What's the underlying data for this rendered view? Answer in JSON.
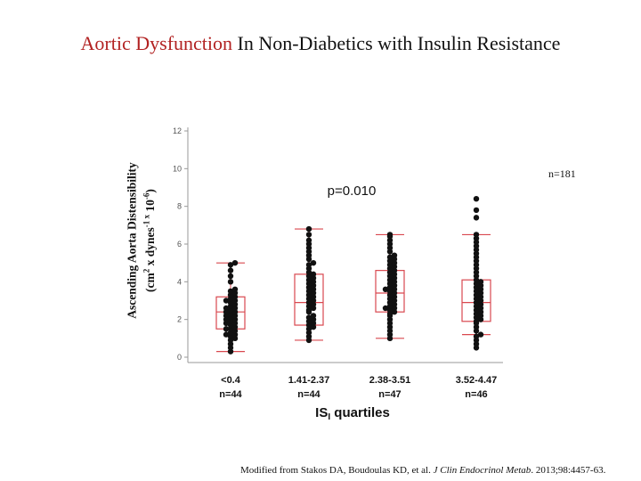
{
  "slide": {
    "title_accent": "Aortic Dysfunction",
    "title_rest": " In Non-Diabetics with Insulin Resistance",
    "ylabel_line1": "Ascending Aorta Distensibility",
    "ylabel_line2_a": "(cm",
    "ylabel_line2_sup1": "2",
    "ylabel_line2_b": " x dynes",
    "ylabel_line2_sup2": "-1 x",
    "ylabel_line2_c": " 10",
    "ylabel_line2_sup3": "-6",
    "ylabel_line2_d": ")",
    "n_total": "n=181",
    "citation_a": "Modified from Stakos DA, Boudoulas KD, et al. ",
    "citation_journal": "J Clin Endocrinol Metab",
    "citation_b": ". 2013;98:4457-63."
  },
  "colors": {
    "title_accent": "#b22222",
    "box": "#d9484f",
    "point": "#111111",
    "axis": "#999999"
  },
  "chart_data": {
    "type": "box",
    "title": "",
    "xlabel": "ISI quartiles",
    "xlabel_main": "IS",
    "xlabel_sub": "I",
    "xlabel_rest": " quartiles",
    "ylim": [
      0,
      12
    ],
    "yticks": [
      0,
      2,
      4,
      6,
      8,
      10,
      12
    ],
    "annotation": "p=0.010",
    "categories": [
      {
        "range": "<0.4",
        "n": "n=44"
      },
      {
        "range": "1.41-2.37",
        "n": "n=44"
      },
      {
        "range": "2.38-3.51",
        "n": "n=47"
      },
      {
        "range": "3.52-4.47",
        "n": "n=46"
      }
    ],
    "boxes": [
      {
        "whisker_low": 0.3,
        "q1": 1.5,
        "median": 2.4,
        "q3": 3.2,
        "whisker_high": 5.0
      },
      {
        "whisker_low": 0.9,
        "q1": 1.7,
        "median": 2.9,
        "q3": 4.4,
        "whisker_high": 6.8
      },
      {
        "whisker_low": 1.0,
        "q1": 2.4,
        "median": 3.4,
        "q3": 4.6,
        "whisker_high": 6.5
      },
      {
        "whisker_low": 1.2,
        "q1": 1.9,
        "median": 2.9,
        "q3": 4.1,
        "whisker_high": 6.5
      }
    ],
    "points": [
      [
        0.3,
        0.5,
        0.7,
        0.9,
        1.0,
        1.1,
        1.2,
        1.3,
        1.4,
        1.5,
        1.6,
        1.7,
        1.8,
        1.9,
        2.0,
        2.1,
        2.2,
        2.3,
        2.4,
        2.5,
        2.6,
        2.7,
        2.8,
        2.9,
        3.0,
        3.1,
        3.2,
        3.3,
        3.4,
        3.5,
        1.2,
        1.8,
        2.2,
        2.6,
        3.0,
        1.5,
        2.0,
        2.4,
        3.6,
        4.0,
        4.3,
        4.6,
        4.9,
        5.0
      ],
      [
        0.9,
        1.1,
        1.3,
        1.5,
        1.6,
        1.7,
        1.8,
        1.9,
        2.0,
        2.1,
        2.2,
        2.4,
        2.5,
        2.6,
        2.7,
        2.8,
        2.9,
        3.0,
        3.1,
        3.2,
        3.3,
        3.4,
        3.5,
        3.6,
        3.7,
        3.8,
        3.9,
        4.0,
        4.1,
        4.2,
        4.3,
        4.4,
        4.5,
        4.7,
        4.9,
        5.0,
        5.2,
        5.4,
        5.6,
        5.8,
        6.0,
        6.2,
        6.5,
        6.8
      ],
      [
        1.0,
        1.2,
        1.4,
        1.6,
        1.8,
        2.0,
        2.2,
        2.3,
        2.4,
        2.5,
        2.6,
        2.7,
        2.8,
        2.9,
        3.0,
        3.1,
        3.2,
        3.3,
        3.4,
        3.5,
        3.6,
        3.7,
        3.8,
        3.9,
        4.0,
        4.1,
        4.2,
        4.3,
        4.4,
        4.5,
        4.6,
        4.7,
        4.8,
        4.9,
        5.0,
        5.1,
        5.2,
        5.3,
        5.4,
        5.6,
        5.8,
        6.0,
        6.2,
        6.4,
        6.5,
        2.6,
        3.6
      ],
      [
        0.5,
        0.7,
        0.9,
        1.1,
        1.2,
        1.4,
        1.6,
        1.8,
        1.9,
        2.0,
        2.1,
        2.2,
        2.3,
        2.4,
        2.5,
        2.6,
        2.7,
        2.8,
        2.9,
        3.0,
        3.1,
        3.2,
        3.3,
        3.4,
        3.5,
        3.6,
        3.7,
        3.8,
        3.9,
        4.0,
        4.1,
        4.3,
        4.5,
        4.7,
        4.9,
        5.1,
        5.3,
        5.5,
        5.7,
        5.9,
        6.1,
        6.3,
        6.5,
        7.4,
        7.8,
        8.4
      ]
    ]
  }
}
